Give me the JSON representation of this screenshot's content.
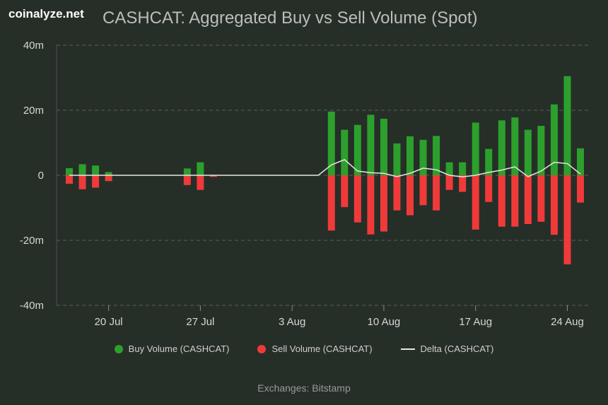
{
  "brand": "coinalyze.net",
  "title": "CASHCAT: Aggregated Buy vs Sell Volume (Spot)",
  "footer": "Exchanges: Bitstamp",
  "colors": {
    "buy": "#2ca02c",
    "sell": "#f03a3a",
    "delta": "#e6e6e6",
    "grid": "#5a5f5a",
    "background": "#262e28"
  },
  "chart_data": {
    "type": "bar",
    "title": "CASHCAT: Aggregated Buy vs Sell Volume (Spot)",
    "ylim": [
      -40,
      40
    ],
    "y_ticks": [
      "40m",
      "20m",
      "0",
      "-20m",
      "-40m"
    ],
    "y_tick_values": [
      40,
      20,
      0,
      -20,
      -40
    ],
    "y_unit": "m",
    "x_tick_labels": [
      "20 Jul",
      "27 Jul",
      "3 Aug",
      "10 Aug",
      "17 Aug",
      "24 Aug"
    ],
    "x_tick_dates": [
      "2024-07-20",
      "2024-07-27",
      "2024-08-03",
      "2024-08-10",
      "2024-08-17",
      "2024-08-24"
    ],
    "dates": [
      "2024-07-17",
      "2024-07-18",
      "2024-07-19",
      "2024-07-20",
      "2024-07-21",
      "2024-07-22",
      "2024-07-23",
      "2024-07-24",
      "2024-07-25",
      "2024-07-26",
      "2024-07-27",
      "2024-07-28",
      "2024-07-29",
      "2024-07-30",
      "2024-07-31",
      "2024-08-01",
      "2024-08-02",
      "2024-08-03",
      "2024-08-04",
      "2024-08-05",
      "2024-08-06",
      "2024-08-07",
      "2024-08-08",
      "2024-08-09",
      "2024-08-10",
      "2024-08-11",
      "2024-08-12",
      "2024-08-13",
      "2024-08-14",
      "2024-08-15",
      "2024-08-16",
      "2024-08-17",
      "2024-08-18",
      "2024-08-19",
      "2024-08-20",
      "2024-08-21",
      "2024-08-22",
      "2024-08-23",
      "2024-08-24",
      "2024-08-25"
    ],
    "series": [
      {
        "name": "Buy Volume (CASHCAT)",
        "type": "bar",
        "values": [
          2.2,
          3.4,
          3.0,
          1.0,
          0,
          0,
          0,
          0,
          0,
          2.1,
          4.0,
          0,
          0,
          0,
          0,
          0,
          0,
          0,
          0,
          0,
          19.6,
          14.0,
          15.5,
          18.6,
          17.4,
          9.8,
          12.0,
          10.9,
          12.1,
          4.0,
          4.0,
          16.2,
          8.1,
          16.9,
          17.8,
          14.0,
          15.2,
          21.8,
          30.5,
          8.3
        ]
      },
      {
        "name": "Sell Volume (CASHCAT)",
        "type": "bar",
        "values": [
          -2.6,
          -4.3,
          -3.8,
          -1.8,
          0,
          0,
          0,
          0,
          0,
          -3.0,
          -4.5,
          -0.5,
          0,
          0,
          0,
          0,
          0,
          0,
          0,
          0,
          -17.0,
          -9.8,
          -14.5,
          -18.2,
          -17.3,
          -10.8,
          -12.3,
          -9.2,
          -10.8,
          -4.5,
          -5.1,
          -16.7,
          -8.2,
          -15.8,
          -15.8,
          -15.0,
          -14.3,
          -18.3,
          -27.4,
          -8.4
        ]
      },
      {
        "name": "Delta (CASHCAT)",
        "type": "line",
        "values": [
          0,
          0,
          0,
          0,
          0,
          0,
          0,
          0,
          0,
          0,
          0,
          0,
          0,
          0,
          0,
          0,
          0,
          0,
          0,
          0,
          3.2,
          4.8,
          1.3,
          0.8,
          0.6,
          -0.4,
          0.6,
          2.2,
          1.7,
          0,
          -0.5,
          0,
          0.9,
          1.6,
          2.6,
          -0.4,
          1.3,
          4.0,
          3.6,
          0.4
        ]
      }
    ]
  },
  "legend": [
    {
      "label": "Buy Volume (CASHCAT)",
      "kind": "dot",
      "color": "#2ca02c"
    },
    {
      "label": "Sell Volume (CASHCAT)",
      "kind": "dot",
      "color": "#f03a3a"
    },
    {
      "label": "Delta (CASHCAT)",
      "kind": "line",
      "color": "#e6e6e6"
    }
  ]
}
